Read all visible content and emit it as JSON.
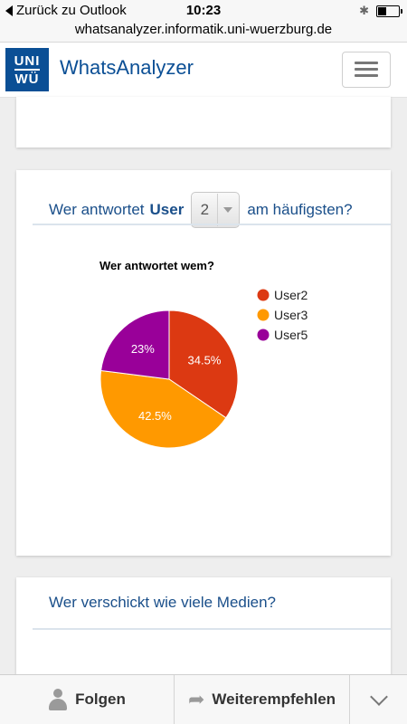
{
  "status_bar": {
    "back_label": "Zurück zu Outlook",
    "time": "10:23"
  },
  "browser": {
    "url": "whatsanalyzer.informatik.uni-wuerzburg.de"
  },
  "navbar": {
    "logo_line1": "UNI",
    "logo_line2": "WÜ",
    "brand": "WhatsAnalyzer"
  },
  "reply_card": {
    "title_prefix": "Wer antwortet",
    "title_user": "User",
    "select_value": "2",
    "title_suffix": "am häufigsten?"
  },
  "chart_data": {
    "type": "pie",
    "title": "Wer antwortet wem?",
    "categories": [
      "User2",
      "User3",
      "User5"
    ],
    "values": [
      34.5,
      42.5,
      23
    ],
    "labels": [
      "34.5%",
      "42.5%",
      "23%"
    ],
    "colors": [
      "#dc3912",
      "#ff9900",
      "#990099"
    ],
    "legend_position": "right"
  },
  "media_card": {
    "title": "Wer verschickt wie viele Medien?"
  },
  "bottom_bar": {
    "follow_label": "Folgen",
    "share_label": "Weiterempfehlen"
  }
}
